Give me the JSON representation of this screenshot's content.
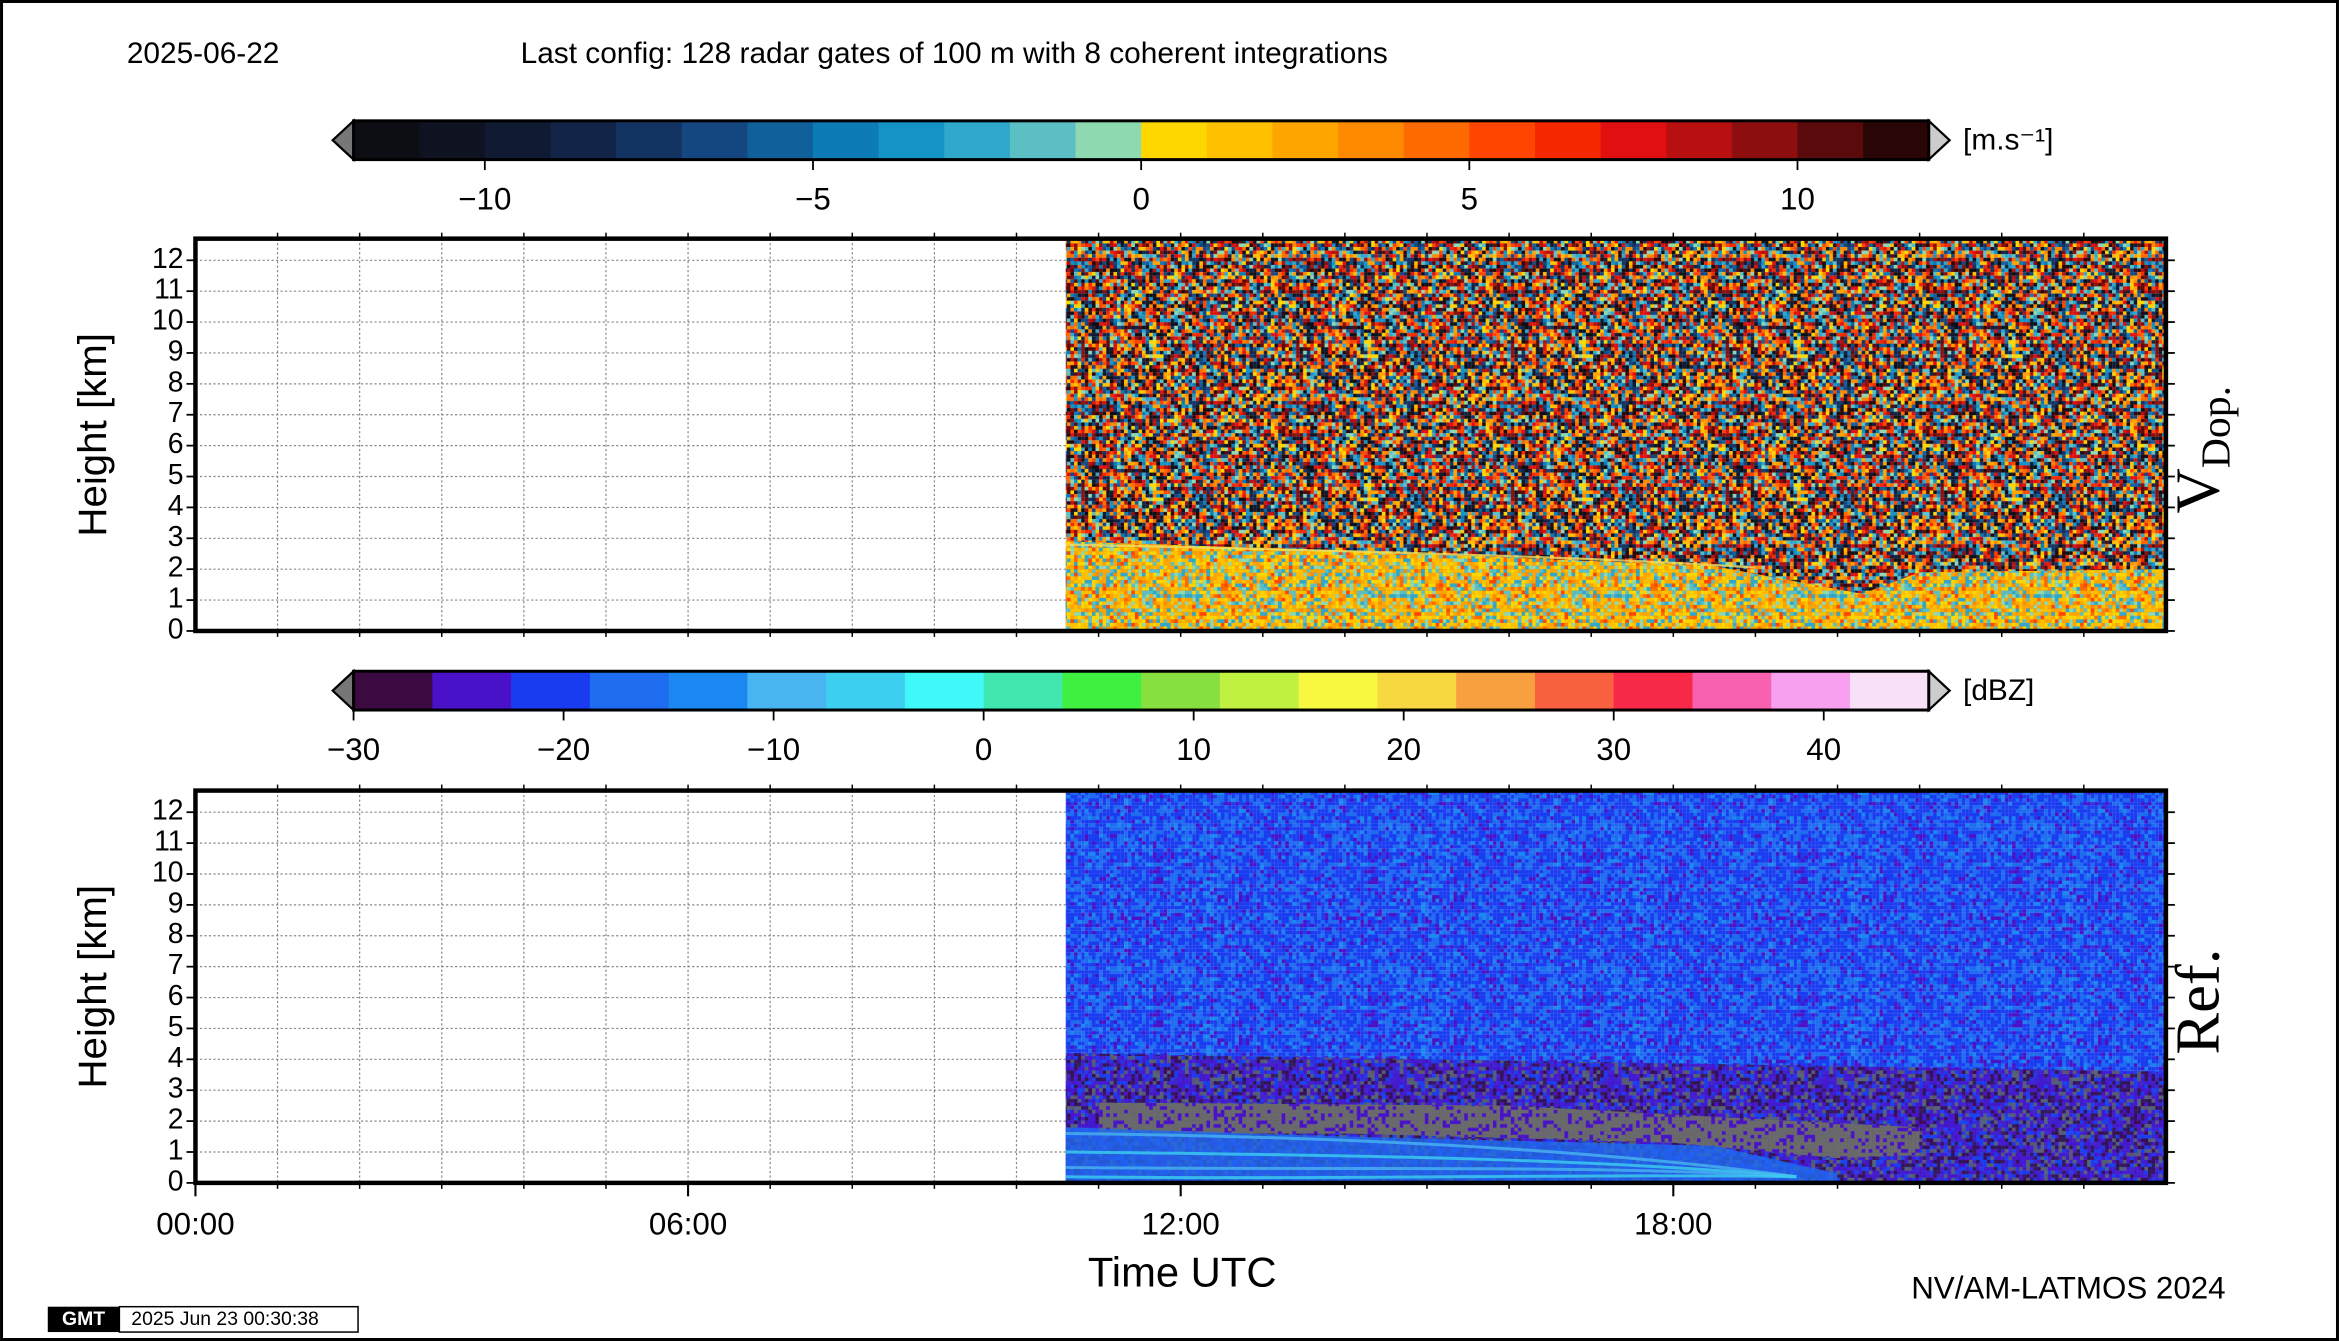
{
  "header": {
    "date": "2025-06-22",
    "config": "Last config: 128 radar gates of 100 m with 8 coherent integrations"
  },
  "chart_data": [
    {
      "type": "heatmap",
      "ylabel": "Height [km]",
      "panel_label": "V",
      "panel_sub": "Dop.",
      "xlim": [
        0,
        24
      ],
      "ylim": [
        0,
        12.7
      ],
      "yticks": [
        0,
        1,
        2,
        3,
        4,
        5,
        6,
        7,
        8,
        9,
        10,
        11,
        12
      ],
      "xgrid": [
        1,
        2,
        3,
        4,
        5,
        6,
        7,
        8,
        9,
        10,
        11,
        12,
        13,
        14,
        15,
        16,
        17,
        18,
        19,
        20,
        21,
        22,
        23
      ],
      "data_start": 10.6,
      "colorbar": {
        "label": "[m.s⁻¹]",
        "lim": [
          -12,
          12
        ],
        "ticks": [
          {
            "value": -10,
            "label": "−10"
          },
          {
            "value": -5,
            "label": "−5"
          },
          0,
          5,
          10
        ],
        "colors": [
          "#0d0d14",
          "#0f1220",
          "#111a33",
          "#122448",
          "#133463",
          "#14467f",
          "#10609c",
          "#0d7cb6",
          "#1494c6",
          "#2fa8cc",
          "#5cbfc4",
          "#8fd9b0",
          "#ffd700",
          "#ffc000",
          "#ffa500",
          "#ff8a00",
          "#ff6a00",
          "#ff4500",
          "#f52800",
          "#e01010",
          "#b81010",
          "#8c0e0e",
          "#5a0a0a",
          "#2a0505"
        ]
      }
    },
    {
      "type": "heatmap",
      "ylabel": "Height [km]",
      "panel_label": "Ref.",
      "xlabel": "Time UTC",
      "xlim": [
        0,
        24
      ],
      "ylim": [
        0,
        12.7
      ],
      "yticks": [
        0,
        1,
        2,
        3,
        4,
        5,
        6,
        7,
        8,
        9,
        10,
        11,
        12
      ],
      "xticks": [
        {
          "value": 0,
          "label": "00:00"
        },
        {
          "value": 6,
          "label": "06:00"
        },
        {
          "value": 12,
          "label": "12:00"
        },
        {
          "value": 18,
          "label": "18:00"
        }
      ],
      "xgrid": [
        1,
        2,
        3,
        4,
        5,
        6,
        7,
        8,
        9,
        10,
        11,
        12,
        13,
        14,
        15,
        16,
        17,
        18,
        19,
        20,
        21,
        22,
        23
      ],
      "data_start": 10.6,
      "colorbar": {
        "label": "[dBZ]",
        "lim": [
          -30,
          45
        ],
        "ticks": [
          {
            "value": -30,
            "label": "−30"
          },
          {
            "value": -20,
            "label": "−20"
          },
          {
            "value": -10,
            "label": "−10"
          },
          0,
          10,
          20,
          30,
          40
        ],
        "colors": [
          "#3a0a40",
          "#4a12c8",
          "#1a3cf0",
          "#1e6cf0",
          "#1a88f0",
          "#48b4f0",
          "#3ccff0",
          "#40f8f8",
          "#40e8b0",
          "#40f040",
          "#88e040",
          "#c0f040",
          "#f8f840",
          "#f8d840",
          "#f8a040",
          "#f86040",
          "#f82848",
          "#f860b0",
          "#f8a0f0",
          "#f8e0f8"
        ]
      }
    }
  ],
  "footer": {
    "logo": "GMT",
    "timestamp": "2025 Jun 23 00:30:38",
    "credit": "NV/AM-LATMOS 2024"
  }
}
